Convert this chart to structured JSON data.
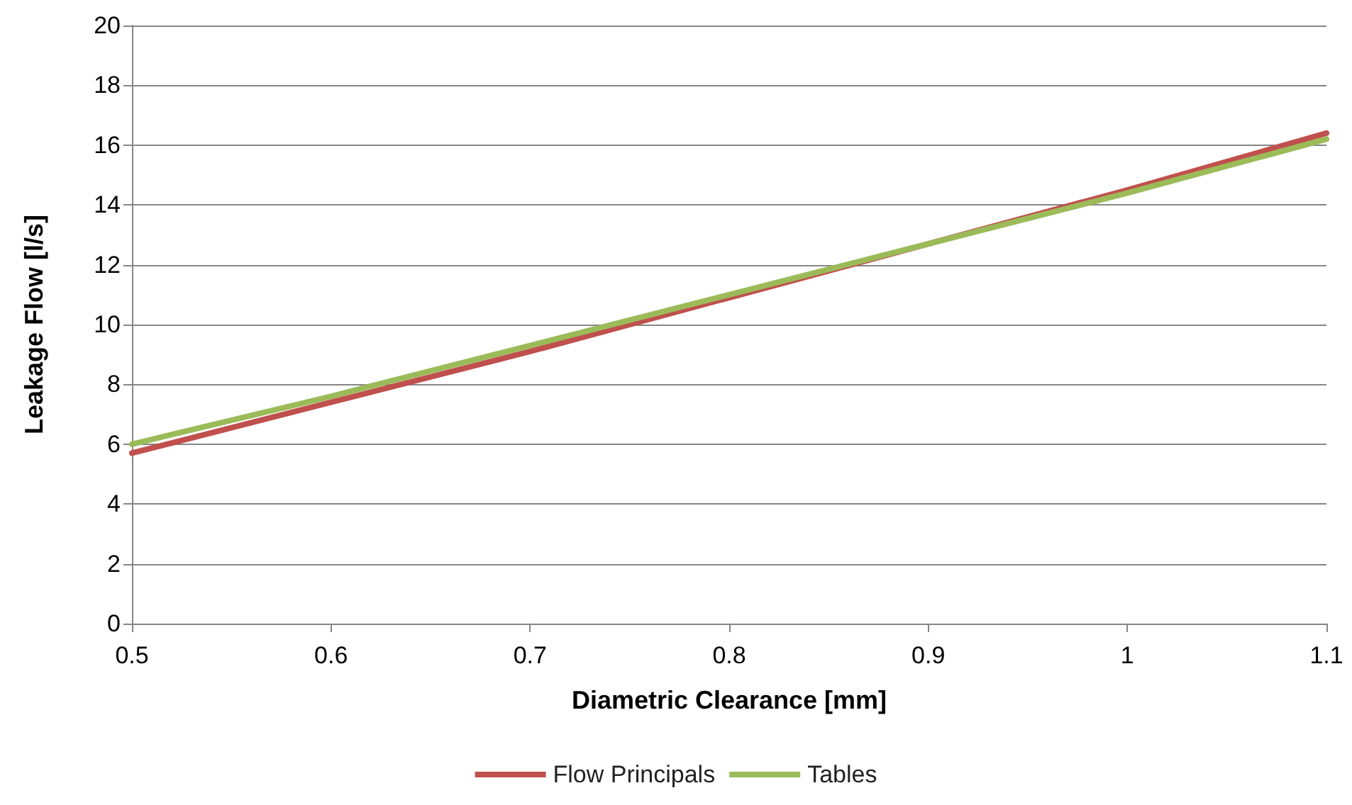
{
  "chart_data": {
    "type": "line",
    "xlabel": "Diametric Clearance [mm]",
    "ylabel": "Leakage Flow [l/s]",
    "x": [
      0.5,
      0.6,
      0.7,
      0.8,
      0.9,
      1.0,
      1.1
    ],
    "series": [
      {
        "name": "Flow Principals",
        "color": "#c0504d",
        "values": [
          5.7,
          7.4,
          9.1,
          10.9,
          12.7,
          14.5,
          16.4
        ]
      },
      {
        "name": "Tables",
        "color": "#9bbb59",
        "values": [
          6.0,
          7.6,
          9.3,
          11.0,
          12.7,
          14.4,
          16.2
        ]
      }
    ],
    "xlim": [
      0.5,
      1.1
    ],
    "xticks": [
      0.5,
      0.6,
      0.7,
      0.8,
      0.9,
      1,
      1.1
    ],
    "ylim": [
      0,
      20
    ],
    "yticks": [
      0,
      2,
      4,
      6,
      8,
      10,
      12,
      14,
      16,
      18,
      20
    ],
    "grid": "y",
    "legend": "bottom",
    "marker": "none",
    "line_style": "solid"
  }
}
